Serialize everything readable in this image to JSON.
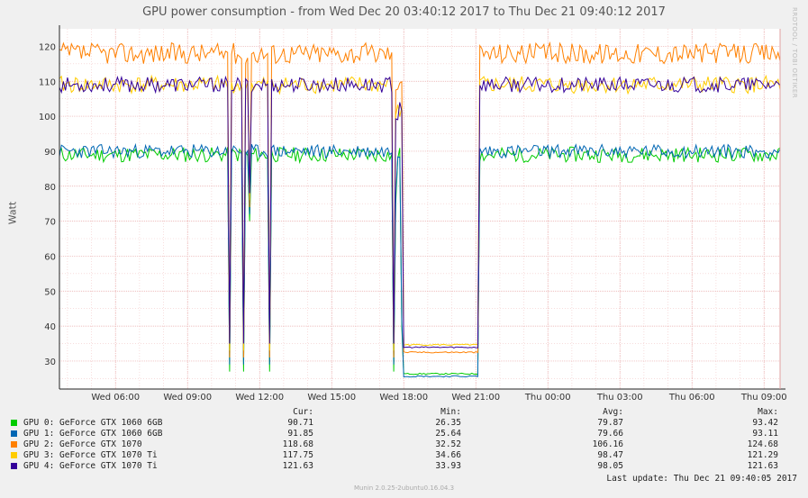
{
  "chart_data": {
    "type": "line",
    "title": "GPU power consumption - from Wed Dec 20 03:40:12 2017 to Thu Dec 21 09:40:12 2017",
    "ylabel": "Watt",
    "ylim": [
      22,
      125
    ],
    "yticks": [
      30,
      40,
      50,
      60,
      70,
      80,
      90,
      100,
      110,
      120
    ],
    "xlim_hours": [
      3.6667,
      33.6667
    ],
    "xticks": [
      {
        "label": "Wed 06:00",
        "hour": 6
      },
      {
        "label": "Wed 09:00",
        "hour": 9
      },
      {
        "label": "Wed 12:00",
        "hour": 12
      },
      {
        "label": "Wed 15:00",
        "hour": 15
      },
      {
        "label": "Wed 18:00",
        "hour": 18
      },
      {
        "label": "Wed 21:00",
        "hour": 21
      },
      {
        "label": "Thu 00:00",
        "hour": 24
      },
      {
        "label": "Thu 03:00",
        "hour": 27
      },
      {
        "label": "Thu 06:00",
        "hour": 30
      },
      {
        "label": "Thu 09:00",
        "hour": 33
      }
    ],
    "grid": true,
    "legend_position": "bottom",
    "series": [
      {
        "name": "GPU 0: GeForce GTX 1060 6GB",
        "color": "#00cc00",
        "base": 89,
        "noise": 2.2,
        "low": 26.35,
        "seed": 11
      },
      {
        "name": "GPU 1: GeForce GTX 1060 6GB",
        "color": "#0066b3",
        "base": 90,
        "noise": 2.0,
        "low": 25.64,
        "seed": 23
      },
      {
        "name": "GPU 2: GeForce GTX 1070",
        "color": "#ff8000",
        "base": 118,
        "noise": 3.0,
        "low": 32.52,
        "seed": 37
      },
      {
        "name": "GPU 3: GeForce GTX 1070 Ti",
        "color": "#ffcc00",
        "base": 109,
        "noise": 2.5,
        "low": 34.66,
        "seed": 41
      },
      {
        "name": "GPU 4: GeForce GTX 1070 Ti",
        "color": "#330099",
        "base": 109,
        "noise": 2.2,
        "low": 33.93,
        "seed": 53
      }
    ],
    "dips": [
      {
        "hour": 10.75,
        "value": 27
      },
      {
        "hour": 11.3,
        "value": 27
      },
      {
        "hour": 11.6,
        "value": 70
      },
      {
        "hour": 12.45,
        "value": 27
      },
      {
        "hour": 17.55,
        "value": 27
      },
      {
        "hour": 17.7,
        "value": 75
      },
      {
        "hour": 17.9,
        "value": 40
      }
    ],
    "idle_range_hours": [
      18.0,
      21.1
    ]
  },
  "legend": {
    "headers": {
      "cur": "Cur:",
      "min": "Min:",
      "avg": "Avg:",
      "max": "Max:"
    },
    "rows": [
      {
        "name": "GPU 0: GeForce GTX 1060 6GB",
        "color": "#00cc00",
        "cur": "90.71",
        "min": "26.35",
        "avg": "79.87",
        "max": "93.42"
      },
      {
        "name": "GPU 1: GeForce GTX 1060 6GB",
        "color": "#0066b3",
        "cur": "91.85",
        "min": "25.64",
        "avg": "79.66",
        "max": "93.11"
      },
      {
        "name": "GPU 2: GeForce GTX 1070",
        "color": "#ff8000",
        "cur": "118.68",
        "min": "32.52",
        "avg": "106.16",
        "max": "124.68"
      },
      {
        "name": "GPU 3: GeForce GTX 1070 Ti",
        "color": "#ffcc00",
        "cur": "117.75",
        "min": "34.66",
        "avg": "98.47",
        "max": "121.29"
      },
      {
        "name": "GPU 4: GeForce GTX 1070 Ti",
        "color": "#330099",
        "cur": "121.63",
        "min": "33.93",
        "avg": "98.05",
        "max": "121.63"
      }
    ],
    "last_update": "Last update: Thu Dec 21 09:40:05 2017"
  },
  "watermark": "RRDTOOL / TOBI OETIKER",
  "footer": "Munin 2.0.25-2ubuntu0.16.04.3"
}
